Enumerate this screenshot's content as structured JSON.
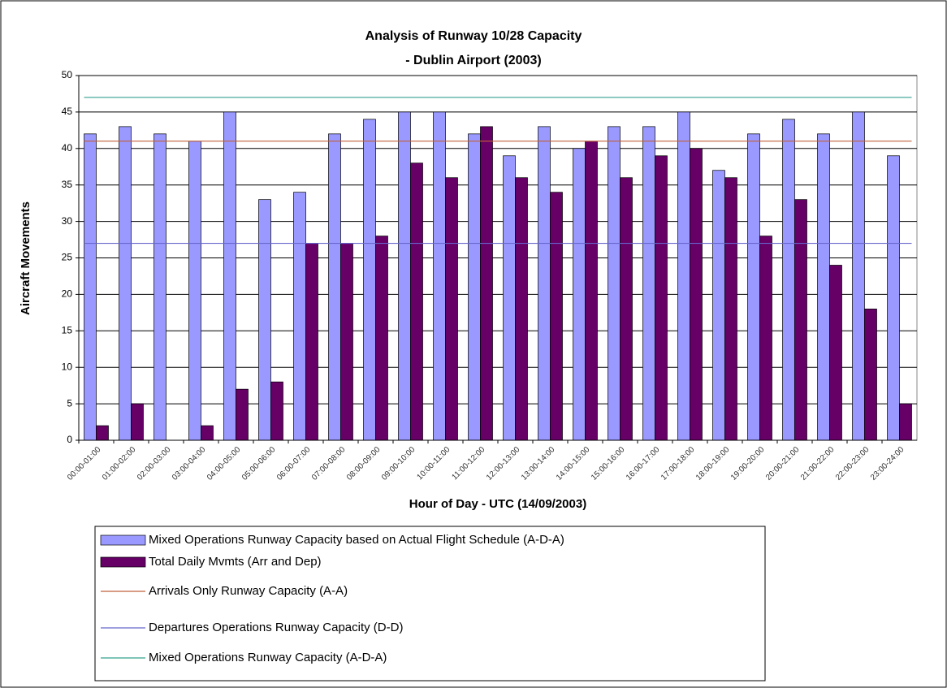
{
  "chart_data": {
    "type": "bar",
    "title": "Analysis of Runway 10/28 Capacity",
    "subtitle": "- Dublin Airport (2003)",
    "x_label": "Hour of Day - UTC (14/09/2003)",
    "y_label": "Aircraft Movements",
    "categories": [
      "00:00-01:00",
      "01:00-02:00",
      "02:00-03:00",
      "03:00-04:00",
      "04:00-05:00",
      "05:00-06:00",
      "06:00-07:00",
      "07:00-08:00",
      "08:00-09:00",
      "09:00-10:00",
      "10:00-11:00",
      "11:00-12:00",
      "12:00-13:00",
      "13:00-14:00",
      "14:00-15:00",
      "15:00-16:00",
      "16:00-17:00",
      "17:00-18:00",
      "18:00-19:00",
      "19:00-20:00",
      "20:00-21:00",
      "21:00-22:00",
      "22:00-23:00",
      "23:00-24:00"
    ],
    "series": [
      {
        "name": "Mixed Operations Runway Capacity based on Actual Flight Schedule (A-D-A)",
        "color": "#9999ff",
        "values": [
          42,
          43,
          42,
          41,
          45,
          33,
          34,
          42,
          44,
          45,
          45,
          42,
          39,
          43,
          40,
          43,
          43,
          45,
          37,
          42,
          44,
          42,
          45,
          39
        ]
      },
      {
        "name": "Total Daily Mvmts (Arr and Dep)",
        "color": "#660066",
        "values": [
          2,
          5,
          0,
          2,
          7,
          8,
          27,
          27,
          28,
          38,
          36,
          43,
          36,
          34,
          41,
          36,
          39,
          40,
          36,
          28,
          33,
          24,
          18,
          5
        ]
      }
    ],
    "reference_lines": [
      {
        "name": "Arrivals Only Runway Capacity (A-A)",
        "color": "#c0603a",
        "value": 41
      },
      {
        "name": "Departures Operations Runway Capacity (D-D)",
        "color": "#6666cc",
        "value": 27
      },
      {
        "name": "Mixed Operations Runway Capacity (A-D-A)",
        "color": "#33a08c",
        "value": 47
      }
    ],
    "ylim": [
      0,
      50
    ],
    "yticks": [
      0,
      5,
      10,
      15,
      20,
      25,
      30,
      35,
      40,
      45,
      50
    ],
    "grid": true
  }
}
